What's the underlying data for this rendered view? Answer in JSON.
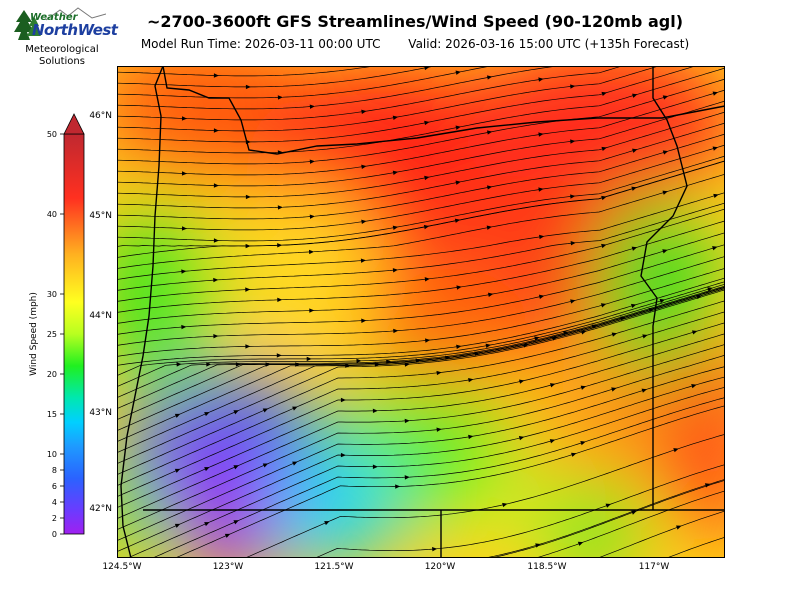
{
  "header": {
    "title": "~2700-3600ft GFS Streamlines/Wind Speed (90-120mb agl)",
    "model_run": "Model Run Time: 2026-03-11 00:00 UTC",
    "valid": "Valid: 2026-03-16 15:00 UTC  (+135h Forecast)"
  },
  "logo": {
    "weather": "Weather",
    "northwest": "NorthWest",
    "subtitle_line1": "Meteorological",
    "subtitle_line2": "Solutions"
  },
  "colorbar": {
    "label": "Wind Speed (mph)",
    "ticks": [
      "0",
      "2",
      "4",
      "6",
      "8",
      "10",
      "15",
      "20",
      "25",
      "30",
      "40",
      "50"
    ],
    "colors": [
      "#a020f0",
      "#6a3cff",
      "#2a63ff",
      "#1e9bff",
      "#00d0ff",
      "#00e8b0",
      "#20f020",
      "#b8ff20",
      "#ffff20",
      "#ffb020",
      "#ff3020",
      "#c02830"
    ]
  },
  "map": {
    "lat_labels": [
      "46°N",
      "45°N",
      "44°N",
      "43°N",
      "42°N"
    ],
    "lon_labels": [
      "124.5°W",
      "123°W",
      "121.5°W",
      "120°W",
      "118.5°W",
      "117°W"
    ]
  }
}
